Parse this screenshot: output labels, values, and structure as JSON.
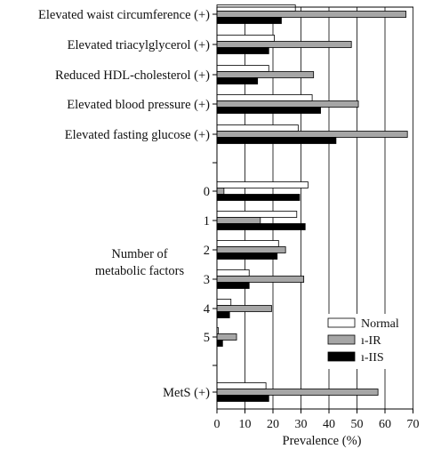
{
  "chart_data": {
    "type": "bar",
    "orientation": "horizontal",
    "xlabel": "Prevalence (%)",
    "xlim": [
      0,
      70
    ],
    "xticks": [
      "0",
      "10",
      "20",
      "30",
      "40",
      "50",
      "60",
      "70"
    ],
    "grid": true,
    "legend_placement": "bottom-right",
    "group_label": "Number of\nmetabolic factors",
    "series": [
      {
        "name": "Normal",
        "color": "#ffffff"
      },
      {
        "name": "ı-IR",
        "color": "#a6a6a6"
      },
      {
        "name": "ı-IIS",
        "color": "#000000"
      }
    ],
    "categories": [
      {
        "label": "Elevated waist circumference (+)",
        "values": [
          28,
          67.5,
          23
        ]
      },
      {
        "label": "Elevated triacylglycerol (+)",
        "values": [
          20.5,
          48,
          18.5
        ]
      },
      {
        "label": "Reduced HDL-cholesterol (+)",
        "values": [
          18.5,
          34.5,
          14.5
        ]
      },
      {
        "label": "Elevated blood pressure (+)",
        "values": [
          34,
          50.5,
          37
        ]
      },
      {
        "label": "Elevated fasting glucose (+)",
        "values": [
          29,
          68,
          42.5
        ]
      },
      {
        "label": "0",
        "values": [
          32.5,
          2.5,
          29.5
        ]
      },
      {
        "label": "1",
        "values": [
          28.5,
          15.5,
          31.5
        ]
      },
      {
        "label": "2",
        "values": [
          22,
          24.5,
          21.5
        ]
      },
      {
        "label": "3",
        "values": [
          11.5,
          31,
          11.5
        ]
      },
      {
        "label": "4",
        "values": [
          5,
          19.5,
          4.5
        ]
      },
      {
        "label": "5",
        "values": [
          0.5,
          7,
          2
        ]
      },
      {
        "label": "MetS (+)",
        "values": [
          17.5,
          57.5,
          18.5
        ]
      }
    ]
  }
}
